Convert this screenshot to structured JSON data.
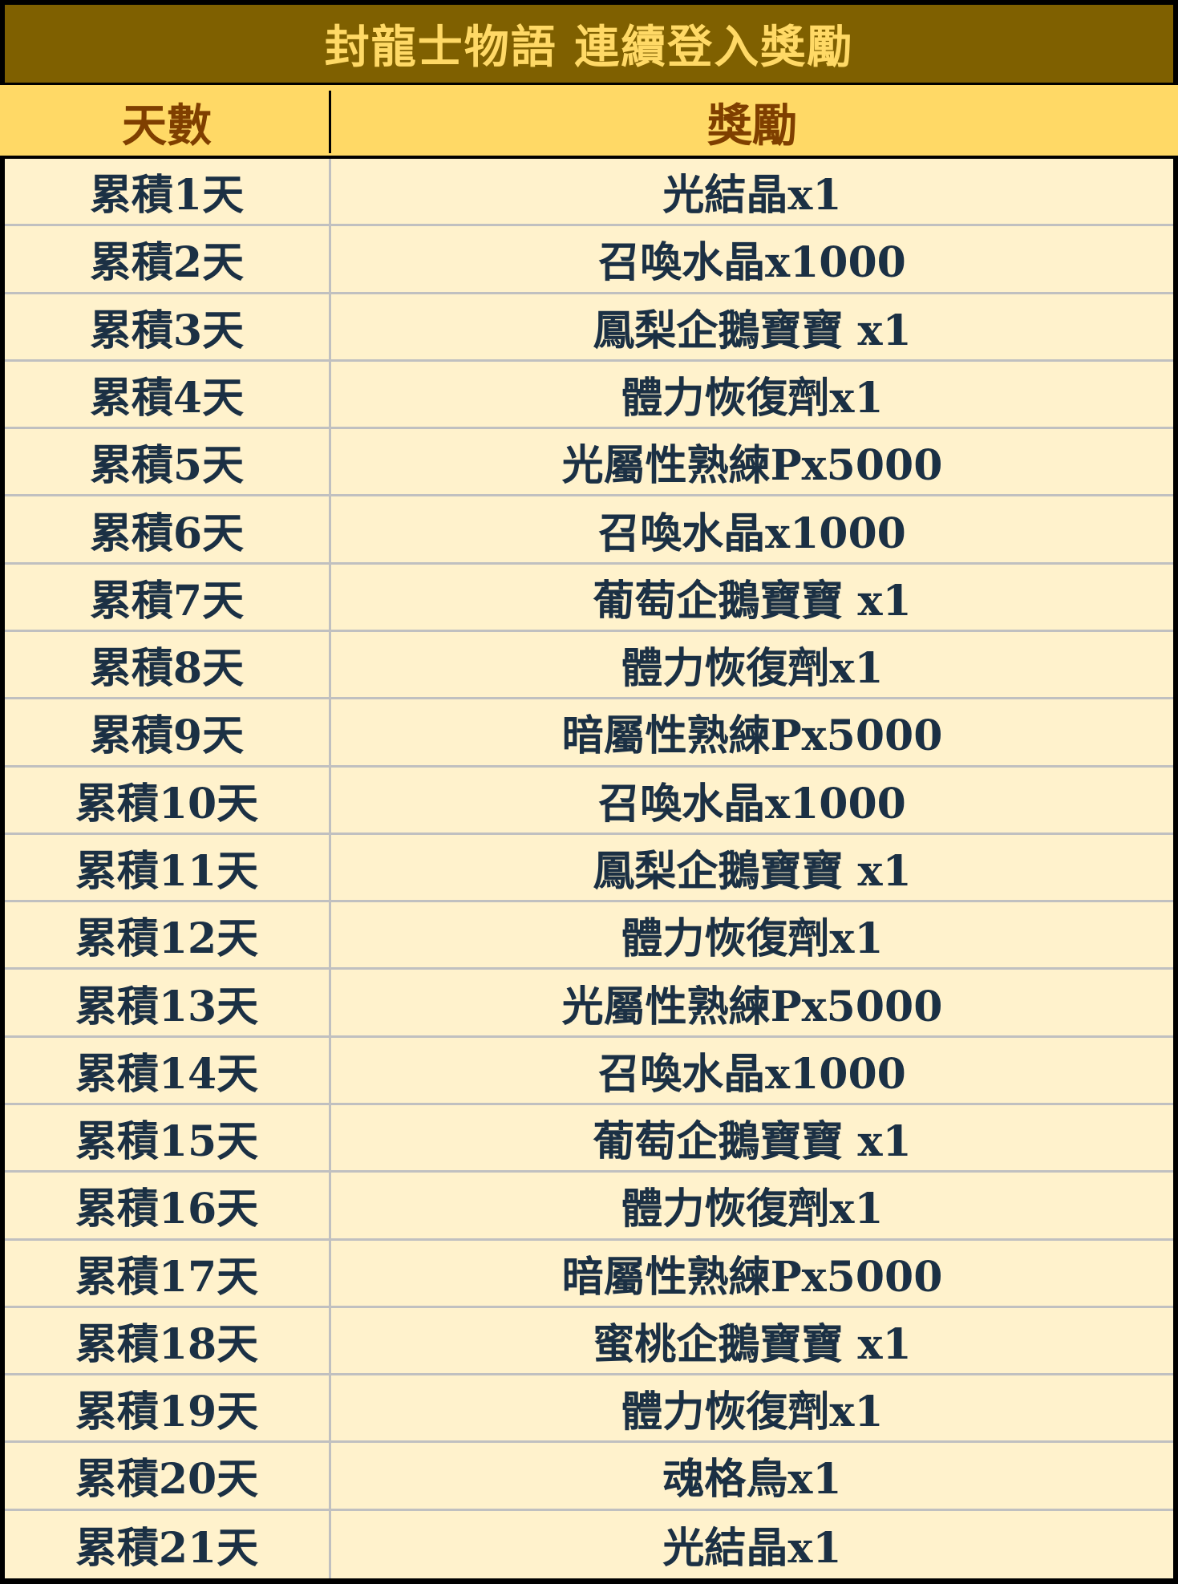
{
  "title": "封龍士物語 連續登入獎勵",
  "colors": {
    "title_bg": "#7F6000",
    "title_text": "#FFD966",
    "header_bg": "#FFD966",
    "header_text": "#7F3F00",
    "body_bg": "#FFF2CC",
    "body_text": "#1B3044",
    "grid": "#C0C0C0"
  },
  "table": {
    "headers": [
      "天數",
      "獎勵"
    ],
    "rows": [
      {
        "day": "累積1天",
        "reward": "光結晶x1"
      },
      {
        "day": "累積2天",
        "reward": "召喚水晶x1000"
      },
      {
        "day": "累積3天",
        "reward": "鳳梨企鵝寶寶 x1"
      },
      {
        "day": "累積4天",
        "reward": "體力恢復劑x1"
      },
      {
        "day": "累積5天",
        "reward": "光屬性熟練Px5000"
      },
      {
        "day": "累積6天",
        "reward": "召喚水晶x1000"
      },
      {
        "day": "累積7天",
        "reward": "葡萄企鵝寶寶 x1"
      },
      {
        "day": "累積8天",
        "reward": "體力恢復劑x1"
      },
      {
        "day": "累積9天",
        "reward": "暗屬性熟練Px5000"
      },
      {
        "day": "累積10天",
        "reward": "召喚水晶x1000"
      },
      {
        "day": "累積11天",
        "reward": "鳳梨企鵝寶寶 x1"
      },
      {
        "day": "累積12天",
        "reward": "體力恢復劑x1"
      },
      {
        "day": "累積13天",
        "reward": "光屬性熟練Px5000"
      },
      {
        "day": "累積14天",
        "reward": "召喚水晶x1000"
      },
      {
        "day": "累積15天",
        "reward": "葡萄企鵝寶寶 x1"
      },
      {
        "day": "累積16天",
        "reward": "體力恢復劑x1"
      },
      {
        "day": "累積17天",
        "reward": "暗屬性熟練Px5000"
      },
      {
        "day": "累積18天",
        "reward": "蜜桃企鵝寶寶 x1"
      },
      {
        "day": "累積19天",
        "reward": "體力恢復劑x1"
      },
      {
        "day": "累積20天",
        "reward": "魂格鳥x1"
      },
      {
        "day": "累積21天",
        "reward": "光結晶x1"
      }
    ]
  }
}
